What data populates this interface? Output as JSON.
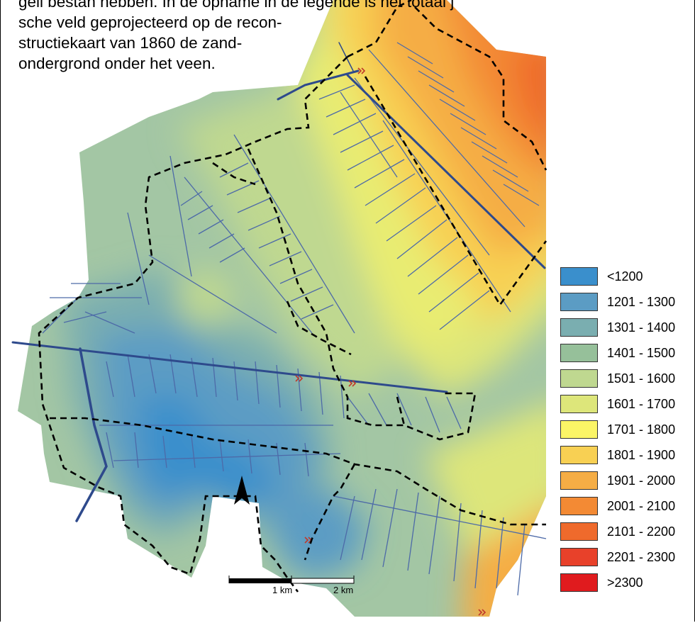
{
  "caption": {
    "lines": [
      "geli̇ bestaṅ hebben. In de opname in de legende is het totaal j",
      "sche veld geprojecteerd op de recon-",
      "structiekaart van 1860 de zand-",
      "ondergrond onder het veen."
    ]
  },
  "legend": {
    "items": [
      {
        "label": "<1200",
        "color": "#3a8fcc"
      },
      {
        "label": "1201 - 1300",
        "color": "#5b9cc4"
      },
      {
        "label": "1301 - 1400",
        "color": "#7aaeb0"
      },
      {
        "label": "1401 - 1500",
        "color": "#96c09a"
      },
      {
        "label": "1501 - 1600",
        "color": "#bfd890"
      },
      {
        "label": "1601 - 1700",
        "color": "#dde67a"
      },
      {
        "label": "1701 - 1800",
        "color": "#fbf566"
      },
      {
        "label": "1801 - 1900",
        "color": "#f8d053"
      },
      {
        "label": "1901 - 2000",
        "color": "#f5ad45"
      },
      {
        "label": "2001 - 2100",
        "color": "#f38a34"
      },
      {
        "label": "2101 - 2200",
        "color": "#ef6a2c"
      },
      {
        "label": "2201 - 2300",
        "color": "#e8412a"
      },
      {
        "label": ">2300",
        "color": "#e01b1e"
      }
    ]
  },
  "scale_bar": {
    "labels": [
      "1 km",
      "2 km"
    ]
  },
  "north_arrow": {
    "icon": "north-arrow-icon"
  },
  "colors": {
    "canals": "#2e4a8c",
    "ditches": "#4d6aa8",
    "boundary": "#000000",
    "weirs": "#c0392b"
  }
}
